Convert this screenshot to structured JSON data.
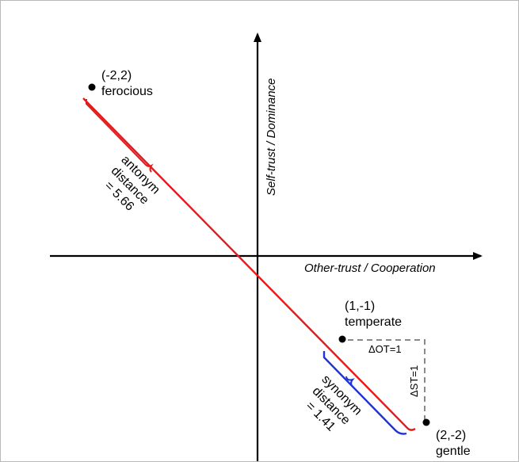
{
  "axes": {
    "x_label": "Other-trust / Cooperation",
    "y_label": "Self-trust / Dominance"
  },
  "points": [
    {
      "coord": "(-2,2)",
      "name": "ferocious"
    },
    {
      "coord": "(1,-1)",
      "name": "temperate"
    },
    {
      "coord": "(2,-2)",
      "name": "gentle"
    }
  ],
  "antonym": {
    "lines": [
      "antonym",
      "distance",
      "= 5.66"
    ],
    "color": "#e41a1c"
  },
  "synonym": {
    "lines": [
      "synonym",
      "distance",
      "= 1.41"
    ],
    "color": "#1f32d6"
  },
  "deltas": {
    "ot": "ΔOT=1",
    "st": "ΔST=1"
  }
}
